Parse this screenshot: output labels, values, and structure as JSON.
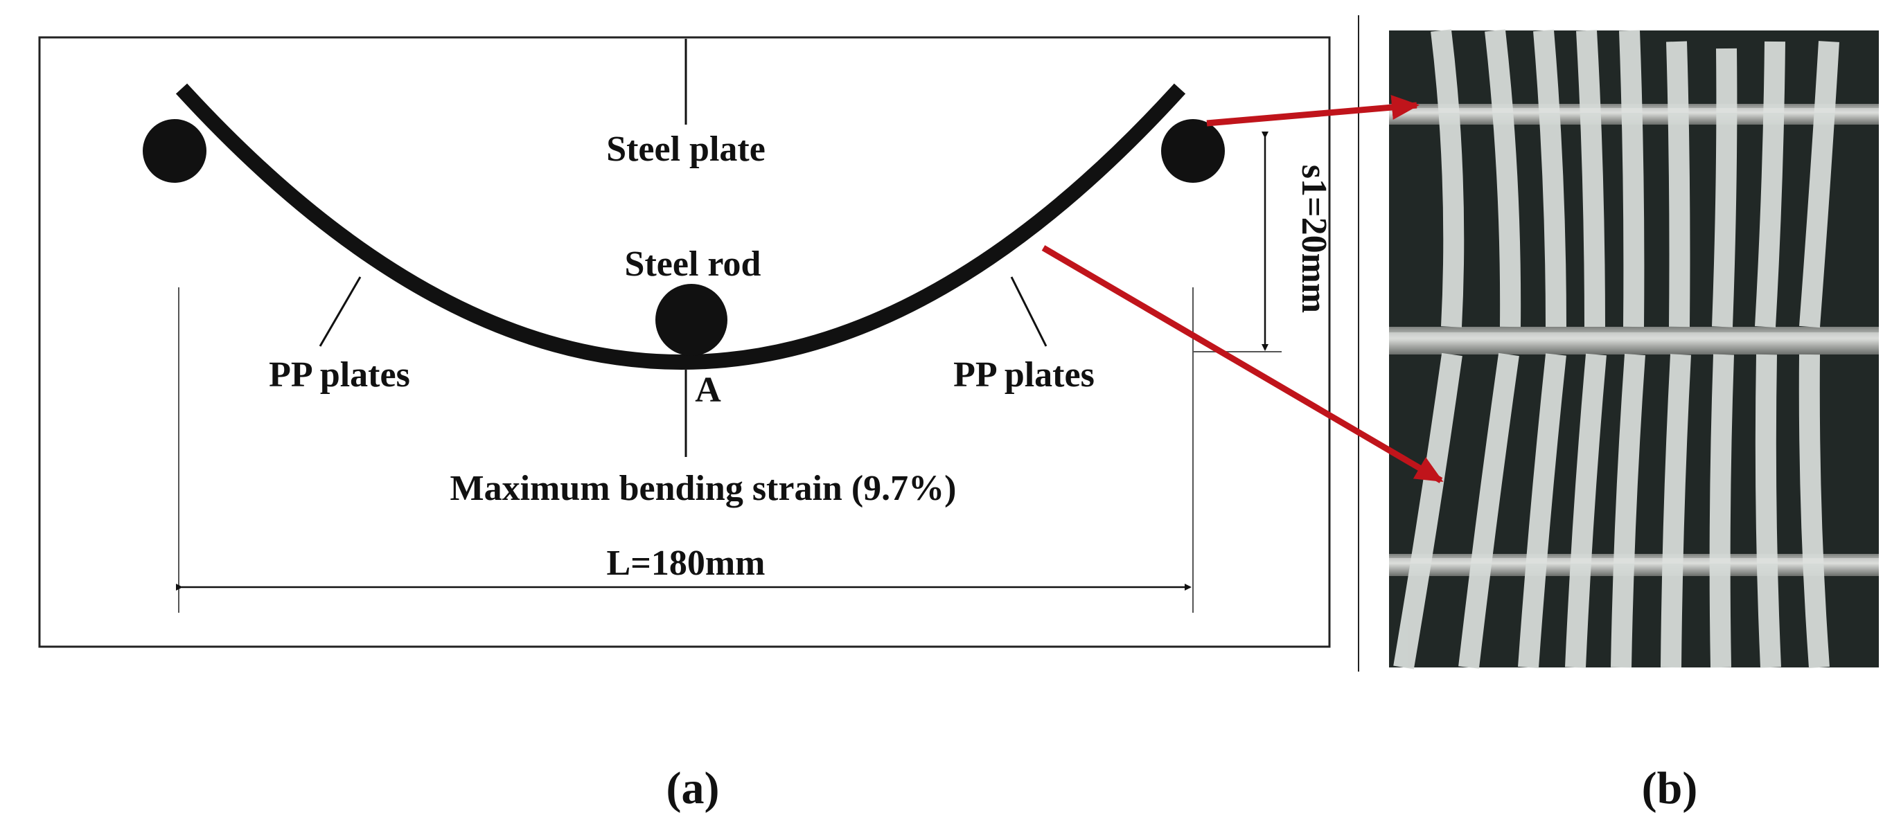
{
  "panel_a": {
    "labels": {
      "steel_plate": "Steel plate",
      "steel_rod": "Steel rod",
      "pp_plates_left": "PP plates",
      "pp_plates_right": "PP plates",
      "point_a": "A",
      "max_strain": "Maximum bending strain (9.7%)",
      "length": "L=180mm",
      "sag": "s1=20mm"
    },
    "caption": "(a)"
  },
  "panel_b": {
    "caption": "(b)"
  },
  "colors": {
    "line": "#111111",
    "arrow": "#c0141b",
    "photo_bg": "#1d2321",
    "strip": "#d6dbd8",
    "rod": "#b7b9b6"
  }
}
